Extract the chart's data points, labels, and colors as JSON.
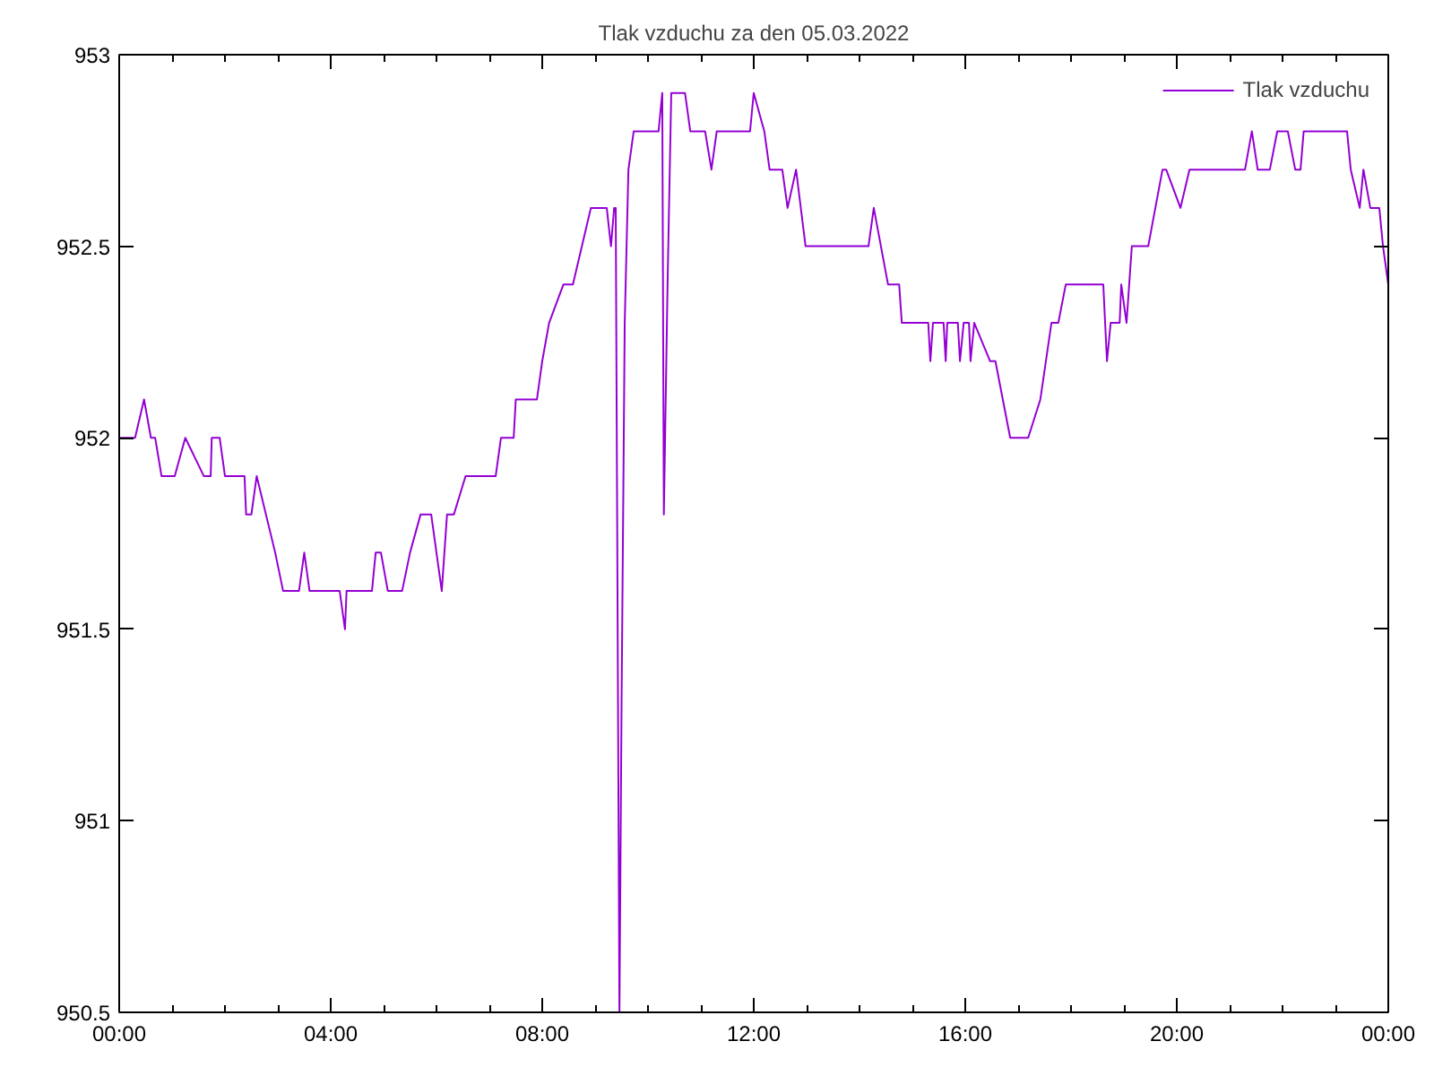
{
  "chart_data": {
    "type": "line",
    "title": "Tlak vzduchu za den 05.03.2022",
    "xlim": [
      0,
      24
    ],
    "ylim": [
      950.5,
      953
    ],
    "xticks": [
      {
        "value": 0,
        "label": "00:00"
      },
      {
        "value": 4,
        "label": "04:00"
      },
      {
        "value": 8,
        "label": "08:00"
      },
      {
        "value": 12,
        "label": "12:00"
      },
      {
        "value": 16,
        "label": "16:00"
      },
      {
        "value": 20,
        "label": "20:00"
      },
      {
        "value": 24,
        "label": "00:00"
      }
    ],
    "yticks": [
      950.5,
      951,
      951.5,
      952,
      952.5,
      953
    ],
    "grid": false,
    "legend": "top right",
    "marker": "none",
    "line_style": "solid",
    "series": [
      {
        "name": "Tlak vzduchu",
        "color": "#9400d3",
        "x": [
          0,
          0.3,
          0.47,
          0.6,
          0.68,
          0.8,
          1.05,
          1.25,
          1.6,
          1.73,
          1.75,
          1.9,
          2.0,
          2.37,
          2.4,
          2.5,
          2.6,
          2.95,
          3.1,
          3.4,
          3.5,
          3.6,
          4.17,
          4.27,
          4.3,
          4.78,
          4.85,
          4.95,
          5.08,
          5.35,
          5.5,
          5.7,
          5.9,
          6.1,
          6.2,
          6.33,
          6.55,
          7.12,
          7.22,
          7.46,
          7.5,
          7.9,
          8.0,
          8.13,
          8.4,
          8.58,
          8.92,
          9.22,
          9.3,
          9.36,
          9.39,
          9.46,
          9.5,
          9.56,
          9.63,
          9.73,
          10.2,
          10.27,
          10.3,
          10.37,
          10.44,
          10.7,
          10.8,
          11.08,
          11.2,
          11.3,
          11.93,
          12.0,
          12.2,
          12.3,
          12.54,
          12.64,
          12.8,
          12.98,
          14.17,
          14.27,
          14.54,
          14.75,
          14.8,
          15.3,
          15.34,
          15.39,
          15.59,
          15.63,
          15.66,
          15.86,
          15.9,
          15.97,
          16.07,
          16.1,
          16.17,
          16.47,
          16.57,
          16.85,
          17.19,
          17.42,
          17.63,
          17.76,
          17.9,
          18.61,
          18.68,
          18.75,
          18.92,
          18.95,
          19.05,
          19.15,
          19.46,
          19.73,
          19.8,
          20.07,
          20.24,
          21.29,
          21.42,
          21.53,
          21.76,
          21.9,
          22.1,
          22.24,
          22.34,
          22.4,
          23.22,
          23.29,
          23.46,
          23.53,
          23.66,
          23.83,
          23.9,
          24.0
        ],
        "values": [
          952.0,
          952.0,
          952.1,
          952.0,
          952.0,
          951.9,
          951.9,
          952.0,
          951.9,
          951.9,
          952.0,
          952.0,
          951.9,
          951.9,
          951.8,
          951.8,
          951.9,
          951.7,
          951.6,
          951.6,
          951.7,
          951.6,
          951.6,
          951.5,
          951.6,
          951.6,
          951.7,
          951.7,
          951.6,
          951.6,
          951.7,
          951.8,
          951.8,
          951.6,
          951.8,
          951.8,
          951.9,
          951.9,
          952.0,
          952.0,
          952.1,
          952.1,
          952.2,
          952.3,
          952.4,
          952.4,
          952.6,
          952.6,
          952.5,
          952.6,
          952.6,
          950.5,
          951.3,
          952.3,
          952.7,
          952.8,
          952.8,
          952.9,
          951.8,
          952.4,
          952.9,
          952.9,
          952.8,
          952.8,
          952.7,
          952.8,
          952.8,
          952.9,
          952.8,
          952.7,
          952.7,
          952.6,
          952.7,
          952.5,
          952.5,
          952.6,
          952.4,
          952.4,
          952.3,
          952.3,
          952.2,
          952.3,
          952.3,
          952.2,
          952.3,
          952.3,
          952.2,
          952.3,
          952.3,
          952.2,
          952.3,
          952.2,
          952.2,
          952.0,
          952.0,
          952.1,
          952.3,
          952.3,
          952.4,
          952.4,
          952.2,
          952.3,
          952.3,
          952.4,
          952.3,
          952.5,
          952.5,
          952.7,
          952.7,
          952.6,
          952.7,
          952.7,
          952.8,
          952.7,
          952.7,
          952.8,
          952.8,
          952.7,
          952.7,
          952.8,
          952.8,
          952.7,
          952.6,
          952.7,
          952.6,
          952.6,
          952.5,
          952.4
        ]
      }
    ]
  }
}
